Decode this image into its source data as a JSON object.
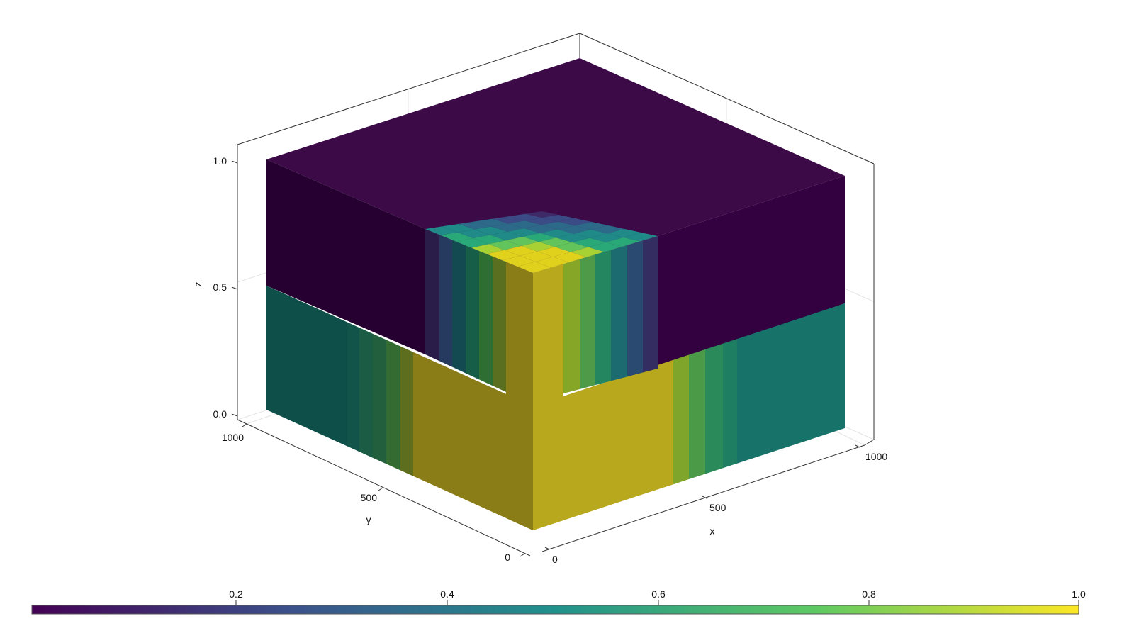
{
  "chart_data": {
    "type": "volume",
    "colormap": "viridis",
    "xlabel": "x",
    "ylabel": "y",
    "zlabel": "z",
    "xticks": [
      "0",
      "500",
      "1000"
    ],
    "yticks": [
      "0",
      "500",
      "1000"
    ],
    "zticks": [
      "0.0",
      "0.5",
      "1.0"
    ],
    "xlim": [
      0,
      1000
    ],
    "ylim": [
      0,
      1000
    ],
    "zlim": [
      0,
      1
    ],
    "colorbar": {
      "ticks": [
        "0.2",
        "0.4",
        "0.6",
        "0.8",
        "1.0"
      ],
      "range": [
        0.01,
        1.0
      ],
      "colors": [
        "#440154",
        "#3b528b",
        "#21918c",
        "#5ec962",
        "#fde725"
      ]
    },
    "grid": true
  }
}
